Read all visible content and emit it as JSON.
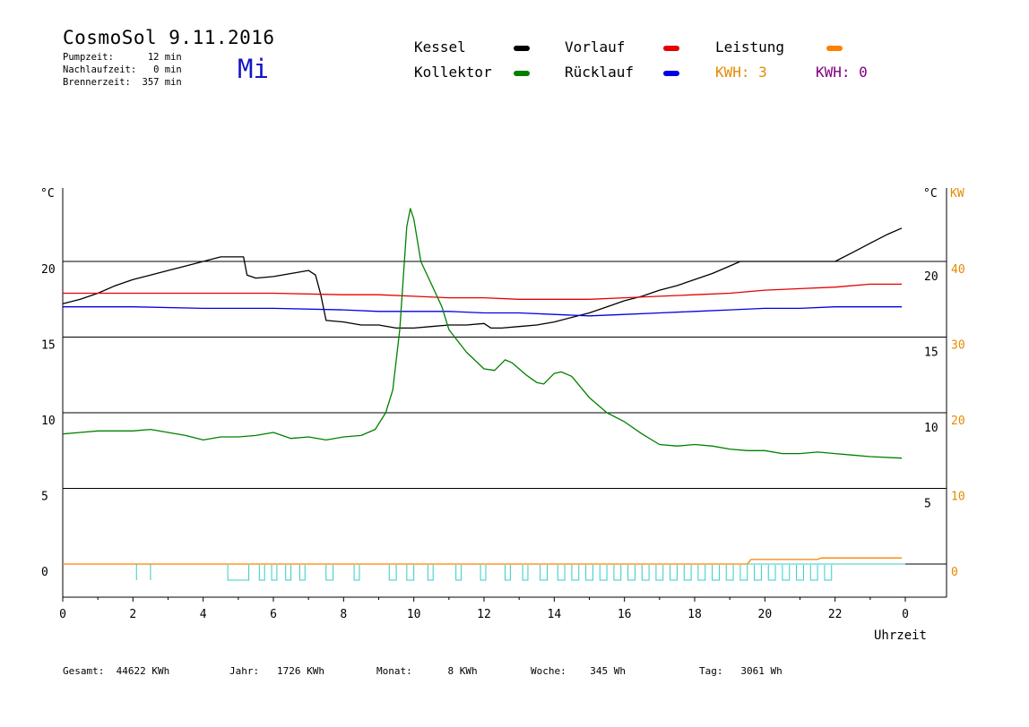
{
  "header": {
    "title": "CosmoSol 9.11.2016",
    "weekday": "Mi",
    "pumpzeit": "Pumpzeit:      12 min",
    "nachlaufzeit": "Nachlaufzeit:   0 min",
    "brennerzeit": "Brennerzeit:  357 min"
  },
  "legend": {
    "kessel": {
      "label": "Kessel",
      "color": "#000000"
    },
    "vorlauf": {
      "label": "Vorlauf",
      "color": "#e60000"
    },
    "leistung": {
      "label": "Leistung",
      "color": "#ff8000"
    },
    "kollektor": {
      "label": "Kollektor",
      "color": "#008000"
    },
    "ruecklauf": {
      "label": "Rücklauf",
      "color": "#0000e6"
    },
    "kwh1": {
      "label": "KWH: 3",
      "color": "#e68a00"
    },
    "kwh2": {
      "label": "KWH: 0",
      "color": "#800080"
    }
  },
  "footer": {
    "gesamt": "Gesamt:  44622 KWh",
    "jahr": "Jahr:   1726 KWh",
    "monat": "Monat:      8 KWh",
    "woche": "Woche:    345 Wh",
    "tag": "Tag:   3061 Wh"
  },
  "chart_data": {
    "type": "line",
    "xlabel": "Uhrzeit",
    "left_axis_label": "°C",
    "right_axis_label_1": "°C",
    "right_axis_label_2": "KW",
    "x_ticks": [
      "0",
      "2",
      "4",
      "6",
      "8",
      "10",
      "12",
      "14",
      "16",
      "18",
      "20",
      "22",
      "0"
    ],
    "xlim": [
      0,
      24
    ],
    "ylim": [
      -2.2,
      25
    ],
    "left_y_ticks": [
      0,
      5,
      10,
      15,
      20
    ],
    "right_y_ticks_inner": [
      5,
      10,
      15,
      20
    ],
    "right_y_ticks_kw": [
      0,
      10,
      20,
      30,
      40
    ],
    "gridlines_y": [
      0,
      5,
      10,
      15,
      20
    ],
    "series": [
      {
        "name": "Kessel",
        "color": "#000000",
        "points": [
          [
            0,
            17.2
          ],
          [
            0.5,
            17.5
          ],
          [
            1,
            17.9
          ],
          [
            1.5,
            18.4
          ],
          [
            2,
            18.8
          ],
          [
            2.5,
            19.1
          ],
          [
            3,
            19.4
          ],
          [
            3.5,
            19.7
          ],
          [
            4,
            20.0
          ],
          [
            4.5,
            20.3
          ],
          [
            5,
            20.3
          ],
          [
            5.15,
            20.3
          ],
          [
            5.25,
            19.1
          ],
          [
            5.5,
            18.9
          ],
          [
            6,
            19.0
          ],
          [
            6.5,
            19.2
          ],
          [
            7,
            19.4
          ],
          [
            7.2,
            19.1
          ],
          [
            7.35,
            17.8
          ],
          [
            7.5,
            16.1
          ],
          [
            8,
            16.0
          ],
          [
            8.5,
            15.8
          ],
          [
            9,
            15.8
          ],
          [
            9.5,
            15.6
          ],
          [
            10,
            15.6
          ],
          [
            10.5,
            15.7
          ],
          [
            11,
            15.8
          ],
          [
            11.5,
            15.8
          ],
          [
            12,
            15.9
          ],
          [
            12.2,
            15.6
          ],
          [
            12.5,
            15.6
          ],
          [
            13,
            15.7
          ],
          [
            13.5,
            15.8
          ],
          [
            14,
            16.0
          ],
          [
            14.5,
            16.3
          ],
          [
            15,
            16.6
          ],
          [
            15.5,
            17.0
          ],
          [
            16,
            17.4
          ],
          [
            16.5,
            17.7
          ],
          [
            17,
            18.1
          ],
          [
            17.5,
            18.4
          ],
          [
            18,
            18.8
          ],
          [
            18.5,
            19.2
          ],
          [
            19,
            19.7
          ],
          [
            19.3,
            20.0
          ],
          [
            22,
            20.0
          ],
          [
            22.5,
            20.6
          ],
          [
            23,
            21.2
          ],
          [
            23.5,
            21.8
          ],
          [
            23.9,
            22.2
          ]
        ]
      },
      {
        "name": "Vorlauf",
        "color": "#e60000",
        "points": [
          [
            0,
            17.9
          ],
          [
            2,
            17.9
          ],
          [
            4,
            17.9
          ],
          [
            6,
            17.9
          ],
          [
            8,
            17.8
          ],
          [
            9,
            17.8
          ],
          [
            10,
            17.7
          ],
          [
            11,
            17.6
          ],
          [
            12,
            17.6
          ],
          [
            13,
            17.5
          ],
          [
            14,
            17.5
          ],
          [
            15,
            17.5
          ],
          [
            16,
            17.6
          ],
          [
            17,
            17.7
          ],
          [
            18,
            17.8
          ],
          [
            19,
            17.9
          ],
          [
            20,
            18.1
          ],
          [
            21,
            18.2
          ],
          [
            22,
            18.3
          ],
          [
            23,
            18.5
          ],
          [
            23.9,
            18.5
          ]
        ]
      },
      {
        "name": "Rücklauf",
        "color": "#0000e6",
        "points": [
          [
            0,
            17.0
          ],
          [
            2,
            17.0
          ],
          [
            4,
            16.9
          ],
          [
            6,
            16.9
          ],
          [
            8,
            16.8
          ],
          [
            9,
            16.7
          ],
          [
            10,
            16.7
          ],
          [
            11,
            16.7
          ],
          [
            12,
            16.6
          ],
          [
            13,
            16.6
          ],
          [
            14,
            16.5
          ],
          [
            15,
            16.4
          ],
          [
            16,
            16.5
          ],
          [
            17,
            16.6
          ],
          [
            18,
            16.7
          ],
          [
            19,
            16.8
          ],
          [
            20,
            16.9
          ],
          [
            21,
            16.9
          ],
          [
            22,
            17.0
          ],
          [
            23,
            17.0
          ],
          [
            23.9,
            17.0
          ]
        ]
      },
      {
        "name": "Kollektor",
        "color": "#008000",
        "points": [
          [
            0,
            8.6
          ],
          [
            0.5,
            8.7
          ],
          [
            1,
            8.8
          ],
          [
            2,
            8.8
          ],
          [
            2.5,
            8.9
          ],
          [
            3,
            8.7
          ],
          [
            3.5,
            8.5
          ],
          [
            4,
            8.2
          ],
          [
            4.5,
            8.4
          ],
          [
            5,
            8.4
          ],
          [
            5.5,
            8.5
          ],
          [
            6,
            8.7
          ],
          [
            6.5,
            8.3
          ],
          [
            7,
            8.4
          ],
          [
            7.5,
            8.2
          ],
          [
            8,
            8.4
          ],
          [
            8.5,
            8.5
          ],
          [
            8.9,
            8.9
          ],
          [
            9.2,
            10.0
          ],
          [
            9.4,
            11.5
          ],
          [
            9.6,
            15.5
          ],
          [
            9.8,
            22.3
          ],
          [
            9.9,
            23.5
          ],
          [
            10,
            22.8
          ],
          [
            10.2,
            20.0
          ],
          [
            10.5,
            18.5
          ],
          [
            10.8,
            17.0
          ],
          [
            11,
            15.5
          ],
          [
            11.5,
            14.0
          ],
          [
            12,
            12.9
          ],
          [
            12.3,
            12.8
          ],
          [
            12.6,
            13.5
          ],
          [
            12.8,
            13.3
          ],
          [
            13.2,
            12.5
          ],
          [
            13.5,
            12.0
          ],
          [
            13.7,
            11.9
          ],
          [
            14,
            12.6
          ],
          [
            14.2,
            12.7
          ],
          [
            14.5,
            12.4
          ],
          [
            15,
            11.0
          ],
          [
            15.5,
            10.0
          ],
          [
            16,
            9.4
          ],
          [
            16.5,
            8.6
          ],
          [
            17,
            7.9
          ],
          [
            17.5,
            7.8
          ],
          [
            18,
            7.9
          ],
          [
            18.5,
            7.8
          ],
          [
            19,
            7.6
          ],
          [
            19.5,
            7.5
          ],
          [
            20,
            7.5
          ],
          [
            20.5,
            7.3
          ],
          [
            21,
            7.3
          ],
          [
            21.5,
            7.4
          ],
          [
            22,
            7.3
          ],
          [
            22.5,
            7.2
          ],
          [
            23,
            7.1
          ],
          [
            23.9,
            7.0
          ]
        ]
      },
      {
        "name": "Leistung",
        "color": "#ff8000",
        "points": [
          [
            0,
            0
          ],
          [
            19.5,
            0
          ],
          [
            19.6,
            0.3
          ],
          [
            21.5,
            0.3
          ],
          [
            21.6,
            0.4
          ],
          [
            23.9,
            0.4
          ]
        ]
      }
    ],
    "pump_cycles_hours": [
      [
        4.7,
        5.3
      ],
      [
        5.6,
        5.75
      ],
      [
        5.95,
        6.1
      ],
      [
        6.35,
        6.5
      ],
      [
        6.75,
        6.9
      ],
      [
        7.5,
        7.7
      ],
      [
        8.3,
        8.45
      ],
      [
        9.3,
        9.5
      ],
      [
        9.8,
        10.0
      ],
      [
        10.4,
        10.55
      ],
      [
        11.2,
        11.35
      ],
      [
        11.9,
        12.05
      ],
      [
        12.6,
        12.75
      ],
      [
        13.1,
        13.25
      ],
      [
        13.6,
        13.8
      ],
      [
        14.1,
        14.3
      ],
      [
        14.5,
        14.7
      ],
      [
        14.9,
        15.1
      ],
      [
        15.3,
        15.5
      ],
      [
        15.7,
        15.9
      ],
      [
        16.1,
        16.3
      ],
      [
        16.5,
        16.7
      ],
      [
        16.9,
        17.1
      ],
      [
        17.3,
        17.5
      ],
      [
        17.7,
        17.9
      ],
      [
        18.1,
        18.3
      ],
      [
        18.5,
        18.7
      ],
      [
        18.9,
        19.1
      ],
      [
        19.3,
        19.5
      ],
      [
        19.7,
        19.9
      ],
      [
        20.1,
        20.3
      ],
      [
        20.5,
        20.7
      ],
      [
        20.9,
        21.1
      ],
      [
        21.3,
        21.5
      ],
      [
        21.7,
        21.9
      ]
    ]
  }
}
